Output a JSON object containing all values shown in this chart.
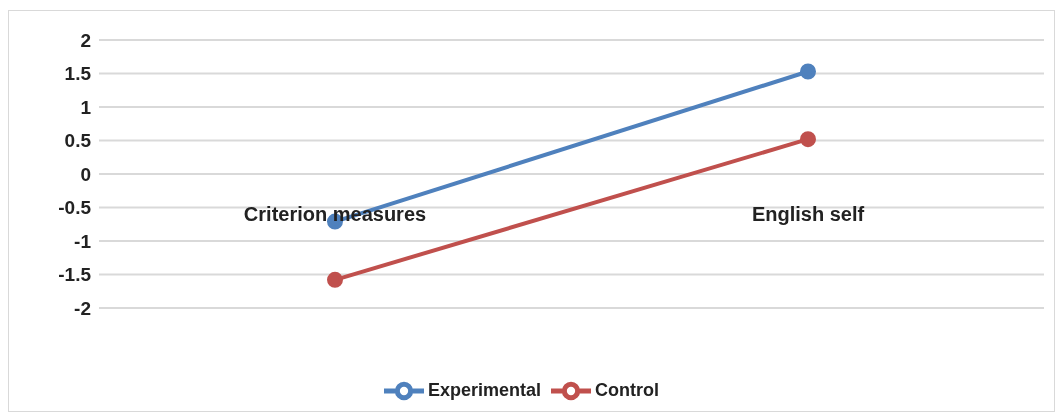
{
  "chart_data": {
    "type": "line",
    "categories": [
      "Criterion measures",
      "English self"
    ],
    "series": [
      {
        "name": "Experimental",
        "color": "#4f81bd",
        "values": [
          -0.71,
          1.53
        ]
      },
      {
        "name": "Control",
        "color": "#c0504d",
        "values": [
          -1.58,
          0.52
        ]
      }
    ],
    "ylim": [
      -2,
      2
    ],
    "yticks": [
      -2,
      -1.5,
      -1,
      -0.5,
      0,
      0.5,
      1,
      1.5,
      2
    ],
    "grid": "y",
    "legend": "bottom",
    "marker": "circle",
    "line_style": "solid"
  }
}
